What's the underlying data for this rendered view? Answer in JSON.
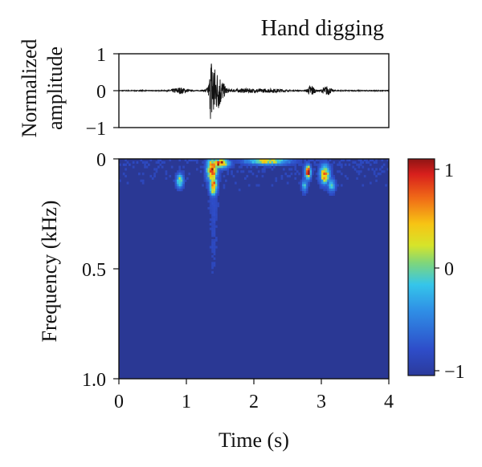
{
  "chart_data": [
    {
      "type": "line",
      "title": "Hand digging",
      "ylabel": [
        "Normalized",
        "amplitude"
      ],
      "ylim": [
        -1,
        1
      ],
      "xlim": [
        0,
        4
      ],
      "yticks": [
        "1",
        "0",
        "−1"
      ],
      "bursts": [
        {
          "t": 0.9,
          "amp": 0.08,
          "width": 0.12
        },
        {
          "t": 1.38,
          "amp": 1.0,
          "width": 0.03
        },
        {
          "t": 1.45,
          "amp": 0.55,
          "width": 0.1
        },
        {
          "t": 1.9,
          "amp": 0.05,
          "width": 0.25
        },
        {
          "t": 2.3,
          "amp": 0.04,
          "width": 0.2
        },
        {
          "t": 2.85,
          "amp": 0.16,
          "width": 0.05
        },
        {
          "t": 3.08,
          "amp": 0.12,
          "width": 0.07
        }
      ]
    },
    {
      "type": "heatmap",
      "xlabel": "Time (s)",
      "ylabel": "Frequency (kHz)",
      "xlim": [
        0,
        4
      ],
      "ylim": [
        0,
        1.0
      ],
      "xticks": [
        "0",
        "1",
        "2",
        "3",
        "4"
      ],
      "yticks": [
        "0",
        "0.5",
        "1.0"
      ],
      "colorbar": {
        "min": -1,
        "max": 1,
        "ticks": [
          "1",
          "0",
          "−1"
        ],
        "colormap": "jet"
      },
      "hotspots": [
        {
          "t": 1.38,
          "f": 0.05,
          "value": 1.0,
          "st": 0.07,
          "sf": 0.05
        },
        {
          "t": 1.4,
          "f": 0.12,
          "value": 0.9,
          "st": 0.05,
          "sf": 0.04
        },
        {
          "t": 1.5,
          "f": 0.02,
          "value": 0.85,
          "st": 0.12,
          "sf": 0.02
        },
        {
          "t": 0.9,
          "f": 0.1,
          "value": 0.1,
          "st": 0.05,
          "sf": 0.03
        },
        {
          "t": 2.2,
          "f": 0.01,
          "value": 0.35,
          "st": 0.3,
          "sf": 0.015
        },
        {
          "t": 2.8,
          "f": 0.06,
          "value": 0.95,
          "st": 0.04,
          "sf": 0.03
        },
        {
          "t": 3.05,
          "f": 0.07,
          "value": 0.6,
          "st": 0.07,
          "sf": 0.04
        },
        {
          "t": 2.75,
          "f": 0.12,
          "value": -0.2,
          "st": 0.04,
          "sf": 0.03
        },
        {
          "t": 3.15,
          "f": 0.12,
          "value": -0.1,
          "st": 0.05,
          "sf": 0.03
        }
      ]
    }
  ]
}
